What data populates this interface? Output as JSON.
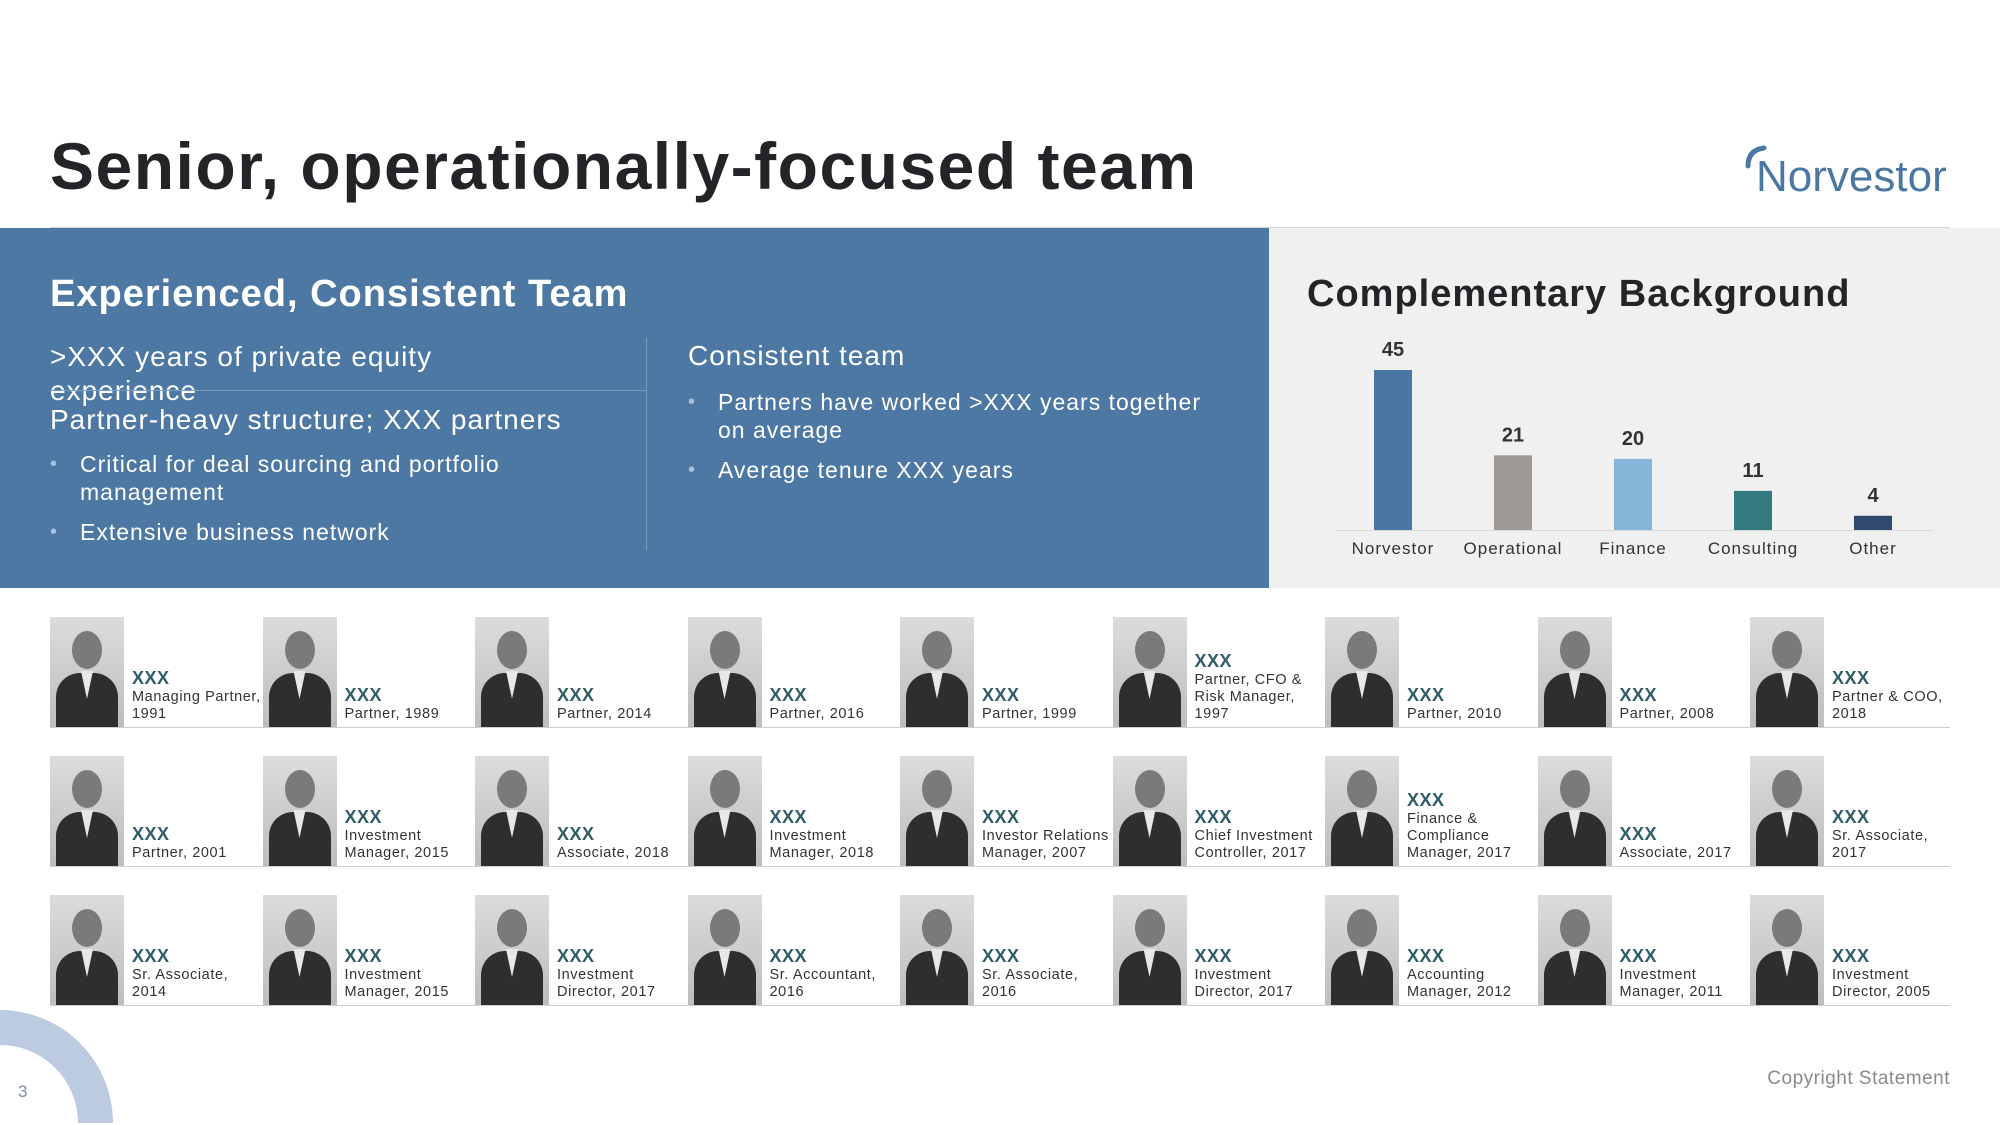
{
  "header": {
    "title": "Senior, operationally-focused team",
    "logo_text": "Norvestor"
  },
  "left_panel": {
    "heading": "Experienced, Consistent Team",
    "sub1": ">XXX years of private equity experience",
    "sub2": "Partner-heavy structure; XXX partners",
    "bullets1": [
      "Critical for deal sourcing and portfolio management",
      "Extensive business network"
    ],
    "sub3": "Consistent team",
    "bullets2": [
      "Partners have worked >XXX years together on average",
      "Average tenure XXX years"
    ]
  },
  "right_panel": {
    "heading": "Complementary Background"
  },
  "chart_data": {
    "type": "bar",
    "categories": [
      "Norvestor",
      "Operational",
      "Finance",
      "Consulting",
      "Other"
    ],
    "values": [
      45,
      21,
      20,
      11,
      4
    ],
    "colors": [
      "#4a76a5",
      "#9d9a96",
      "#85b5d9",
      "#337a7e",
      "#2f4a6e"
    ],
    "title": "Complementary Background",
    "ylim": [
      0,
      45
    ]
  },
  "people": [
    [
      {
        "name": "XXX",
        "role": "Managing Partner, 1991"
      },
      {
        "name": "XXX",
        "role": "Partner, 1989"
      },
      {
        "name": "XXX",
        "role": "Partner, 2014"
      },
      {
        "name": "XXX",
        "role": "Partner, 2016"
      },
      {
        "name": "XXX",
        "role": "Partner, 1999"
      },
      {
        "name": "XXX",
        "role": "Partner, CFO & Risk Manager, 1997"
      },
      {
        "name": "XXX",
        "role": "Partner, 2010"
      },
      {
        "name": "XXX",
        "role": "Partner, 2008"
      },
      {
        "name": "XXX",
        "role": "Partner & COO, 2018"
      }
    ],
    [
      {
        "name": "XXX",
        "role": "Partner, 2001"
      },
      {
        "name": "XXX",
        "role": "Investment Manager, 2015"
      },
      {
        "name": "XXX",
        "role": "Associate, 2018"
      },
      {
        "name": "XXX",
        "role": "Investment Manager, 2018"
      },
      {
        "name": "XXX",
        "role": "Investor Relations Manager, 2007"
      },
      {
        "name": "XXX",
        "role": "Chief Investment Controller, 2017"
      },
      {
        "name": "XXX",
        "role": "Finance & Compliance Manager, 2017"
      },
      {
        "name": "XXX",
        "role": "Associate, 2017"
      },
      {
        "name": "XXX",
        "role": "Sr. Associate, 2017"
      }
    ],
    [
      {
        "name": "XXX",
        "role": "Sr. Associate, 2014"
      },
      {
        "name": "XXX",
        "role": "Investment Manager, 2015"
      },
      {
        "name": "XXX",
        "role": "Investment Director, 2017"
      },
      {
        "name": "XXX",
        "role": "Sr. Accountant, 2016"
      },
      {
        "name": "XXX",
        "role": "Sr. Associate, 2016"
      },
      {
        "name": "XXX",
        "role": "Investment Director, 2017"
      },
      {
        "name": "XXX",
        "role": "Accounting Manager, 2012"
      },
      {
        "name": "XXX",
        "role": "Investment Manager, 2011"
      },
      {
        "name": "XXX",
        "role": "Investment Director, 2005"
      }
    ]
  ],
  "footer": {
    "copyright": "Copyright Statement",
    "page_number": "3"
  }
}
